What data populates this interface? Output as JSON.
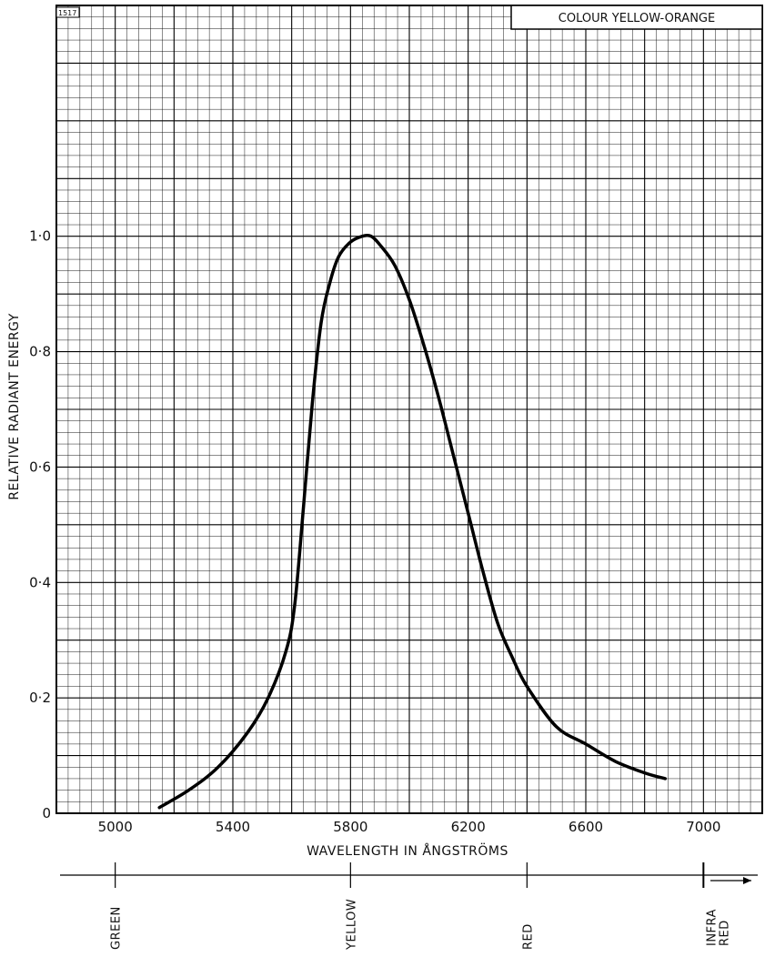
{
  "plate_number": "1517",
  "chart_data": {
    "type": "line",
    "title": "COLOUR YELLOW-ORANGE",
    "xlabel": "WAVELENGTH IN ÅNGSTRÖMS",
    "ylabel": "RELATIVE RADIANT ENERGY",
    "xlim": [
      4800,
      7200
    ],
    "ylim": [
      0,
      1.4
    ],
    "x_ticks": [
      {
        "value": 5000,
        "label": "5000"
      },
      {
        "value": 5400,
        "label": "5400"
      },
      {
        "value": 5800,
        "label": "5800"
      },
      {
        "value": 6200,
        "label": "6200"
      },
      {
        "value": 6600,
        "label": "6600"
      },
      {
        "value": 7000,
        "label": "7000"
      }
    ],
    "y_ticks": [
      {
        "value": 0,
        "label": "0"
      },
      {
        "value": 0.2,
        "label": "0·2"
      },
      {
        "value": 0.4,
        "label": "0·4"
      },
      {
        "value": 0.6,
        "label": "0·6"
      },
      {
        "value": 0.8,
        "label": "0·8"
      },
      {
        "value": 1.0,
        "label": "1·0"
      }
    ],
    "grid": true,
    "series": [
      {
        "x": [
          5150,
          5250,
          5350,
          5450,
          5520,
          5580,
          5610,
          5640,
          5670,
          5700,
          5730,
          5760,
          5800,
          5840,
          5870,
          5900,
          5950,
          6000,
          6050,
          6100,
          6150,
          6200,
          6250,
          6300,
          6350,
          6400,
          6500,
          6600,
          6700,
          6800,
          6870
        ],
        "y": [
          0.01,
          0.04,
          0.08,
          0.14,
          0.2,
          0.28,
          0.36,
          0.53,
          0.71,
          0.85,
          0.92,
          0.965,
          0.99,
          1.0,
          1.0,
          0.985,
          0.95,
          0.89,
          0.81,
          0.72,
          0.62,
          0.52,
          0.42,
          0.33,
          0.27,
          0.22,
          0.15,
          0.12,
          0.09,
          0.07,
          0.06
        ]
      }
    ],
    "spectrum_bands": [
      {
        "label": "GREEN",
        "x": 5000
      },
      {
        "label": "YELLOW",
        "x": 5800
      },
      {
        "label": "RED",
        "x": 6400
      },
      {
        "label": "INFRA",
        "label2": "RED",
        "x": 7000
      }
    ]
  }
}
